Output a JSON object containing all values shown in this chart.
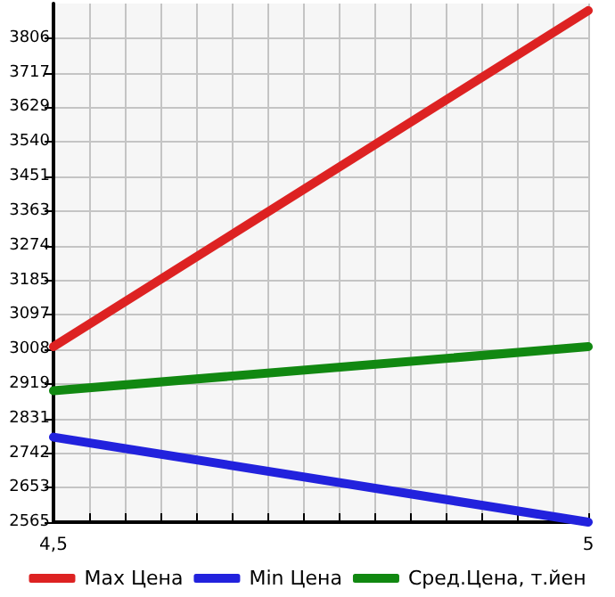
{
  "chart_data": {
    "type": "line",
    "x": [
      4.5,
      5
    ],
    "series": [
      {
        "name": "Max Цена",
        "color": "#dd2222",
        "values": [
          3015,
          3877
        ]
      },
      {
        "name": "Min Цена",
        "color": "#2222dd",
        "values": [
          2783,
          2565
        ]
      },
      {
        "name": "Сред.Цена, т.йен",
        "color": "#118811",
        "values": [
          2902,
          3015
        ]
      }
    ],
    "xlim": [
      4.5,
      5
    ],
    "xticks": [
      {
        "value": 4.5,
        "label": "4,5"
      },
      {
        "value": 4.5333,
        "label": null
      },
      {
        "value": 4.5667,
        "label": null
      },
      {
        "value": 4.6,
        "label": null
      },
      {
        "value": 4.6333,
        "label": null
      },
      {
        "value": 4.6667,
        "label": null
      },
      {
        "value": 4.7,
        "label": null
      },
      {
        "value": 4.7333,
        "label": null
      },
      {
        "value": 4.7667,
        "label": null
      },
      {
        "value": 4.8,
        "label": null
      },
      {
        "value": 4.8333,
        "label": null
      },
      {
        "value": 4.8667,
        "label": null
      },
      {
        "value": 4.9,
        "label": null
      },
      {
        "value": 4.9333,
        "label": null
      },
      {
        "value": 4.9667,
        "label": null
      },
      {
        "value": 5,
        "label": "5"
      }
    ],
    "ylim": [
      2565,
      3895
    ],
    "yticks": [
      2565,
      2653,
      2742,
      2831,
      2919,
      3008,
      3097,
      3185,
      3274,
      3363,
      3451,
      3540,
      3629,
      3717,
      3806
    ],
    "grid": true,
    "legend": "bottom",
    "marker": "none",
    "line_style": "solid"
  }
}
